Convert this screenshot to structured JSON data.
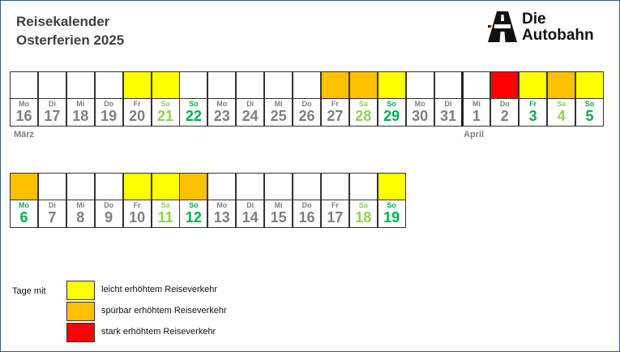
{
  "header": {
    "title": "Reisekalender",
    "subtitle": "Osterferien 2025",
    "logo_line1": "Die",
    "logo_line2": "Autobahn"
  },
  "colors": {
    "light": "#ffff00",
    "noticeable": "#ffc000",
    "strong": "#ff0000",
    "saturday": "#92d050",
    "sunday_holiday": "#00b050",
    "weekday": "#7f7f7f"
  },
  "months": {
    "march": "März",
    "april": "April"
  },
  "row1": [
    {
      "wd": "Mo",
      "d": "16",
      "level": "none",
      "kind": "wd"
    },
    {
      "wd": "Di",
      "d": "17",
      "level": "none",
      "kind": "wd"
    },
    {
      "wd": "Mi",
      "d": "18",
      "level": "none",
      "kind": "wd"
    },
    {
      "wd": "Do",
      "d": "19",
      "level": "none",
      "kind": "wd"
    },
    {
      "wd": "Fr",
      "d": "20",
      "level": "light",
      "kind": "wd"
    },
    {
      "wd": "Sa",
      "d": "21",
      "level": "light",
      "kind": "sat"
    },
    {
      "wd": "So",
      "d": "22",
      "level": "none",
      "kind": "sun"
    },
    {
      "wd": "Mo",
      "d": "23",
      "level": "none",
      "kind": "wd"
    },
    {
      "wd": "Di",
      "d": "24",
      "level": "none",
      "kind": "wd"
    },
    {
      "wd": "Mi",
      "d": "25",
      "level": "none",
      "kind": "wd"
    },
    {
      "wd": "Do",
      "d": "26",
      "level": "none",
      "kind": "wd"
    },
    {
      "wd": "Fr",
      "d": "27",
      "level": "noticeable",
      "kind": "wd"
    },
    {
      "wd": "Sa",
      "d": "28",
      "level": "noticeable",
      "kind": "sat"
    },
    {
      "wd": "So",
      "d": "29",
      "level": "light",
      "kind": "sun"
    },
    {
      "wd": "Mo",
      "d": "30",
      "level": "none",
      "kind": "wd"
    },
    {
      "wd": "Di",
      "d": "31",
      "level": "none",
      "kind": "wd"
    },
    {
      "wd": "Mi",
      "d": "1",
      "level": "none",
      "kind": "wd"
    },
    {
      "wd": "Do",
      "d": "2",
      "level": "strong",
      "kind": "wd"
    },
    {
      "wd": "Fr",
      "d": "3",
      "level": "light",
      "kind": "hol"
    },
    {
      "wd": "Sa",
      "d": "4",
      "level": "noticeable",
      "kind": "sat"
    },
    {
      "wd": "So",
      "d": "5",
      "level": "light",
      "kind": "sun"
    }
  ],
  "row2": [
    {
      "wd": "Mo",
      "d": "6",
      "level": "noticeable",
      "kind": "hol"
    },
    {
      "wd": "Di",
      "d": "7",
      "level": "none",
      "kind": "wd"
    },
    {
      "wd": "Mi",
      "d": "8",
      "level": "none",
      "kind": "wd"
    },
    {
      "wd": "Do",
      "d": "9",
      "level": "none",
      "kind": "wd"
    },
    {
      "wd": "Fr",
      "d": "10",
      "level": "light",
      "kind": "wd"
    },
    {
      "wd": "Sa",
      "d": "11",
      "level": "light",
      "kind": "sat"
    },
    {
      "wd": "So",
      "d": "12",
      "level": "noticeable",
      "kind": "sun"
    },
    {
      "wd": "Mo",
      "d": "13",
      "level": "none",
      "kind": "wd"
    },
    {
      "wd": "Di",
      "d": "14",
      "level": "none",
      "kind": "wd"
    },
    {
      "wd": "Mi",
      "d": "15",
      "level": "none",
      "kind": "wd"
    },
    {
      "wd": "Do",
      "d": "16",
      "level": "none",
      "kind": "wd"
    },
    {
      "wd": "Fr",
      "d": "17",
      "level": "none",
      "kind": "wd"
    },
    {
      "wd": "Sa",
      "d": "18",
      "level": "none",
      "kind": "sat"
    },
    {
      "wd": "So",
      "d": "19",
      "level": "light",
      "kind": "sun"
    }
  ],
  "legend": {
    "title": "Tage mit",
    "items": [
      {
        "level": "light",
        "label": "leicht erhöhtem Reiseverkehr"
      },
      {
        "level": "noticeable",
        "label": "spürbar erhöhtem Reiseverkehr"
      },
      {
        "level": "strong",
        "label": "stark erhöhtem Reiseverkehr"
      }
    ]
  }
}
